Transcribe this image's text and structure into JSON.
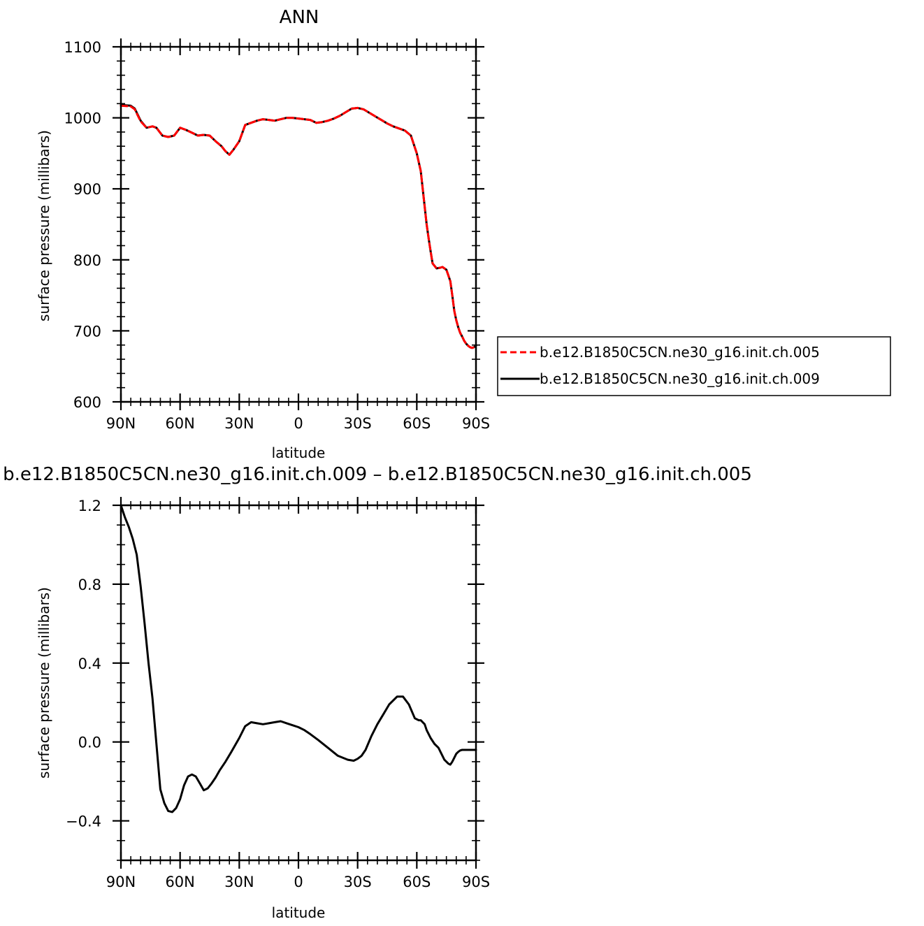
{
  "chart_data": [
    {
      "type": "line",
      "title": "ANN",
      "xlabel": "latitude",
      "ylabel": "surface pressure (millibars)",
      "xlim": [
        90,
        -90
      ],
      "ylim": [
        600,
        1100
      ],
      "xtick_values": [
        90,
        60,
        30,
        0,
        -30,
        -60,
        -90
      ],
      "xtick_labels": [
        "90N",
        "60N",
        "30N",
        "0",
        "30S",
        "60S",
        "90S"
      ],
      "ytick_values": [
        600,
        700,
        800,
        900,
        1000,
        1100
      ],
      "ytick_labels": [
        "600",
        "700",
        "800",
        "900",
        "1000",
        "1100"
      ],
      "grid": false,
      "legend_position": "right",
      "series": [
        {
          "name": "b.e12.B1850C5CN.ne30_g16.init.ch.005",
          "color": "#ff0000",
          "dash": "dashed",
          "x": [
            90,
            85,
            83,
            80,
            77,
            74,
            72,
            69,
            66,
            63,
            60,
            57,
            54,
            51,
            48,
            45,
            42,
            39,
            37,
            35,
            33,
            30,
            27,
            24,
            21,
            18,
            15,
            12,
            9,
            6,
            3,
            0,
            -3,
            -6,
            -9,
            -12,
            -15,
            -18,
            -21,
            -24,
            -27,
            -30,
            -33,
            -36,
            -39,
            -42,
            -45,
            -48,
            -51,
            -54,
            -57,
            -60,
            -62,
            -63,
            -64,
            -65,
            -66,
            -67,
            -68,
            -70,
            -72,
            -73,
            -75,
            -77,
            -78,
            -79,
            -80,
            -81,
            -82,
            -83,
            -84,
            -85,
            -86,
            -87,
            -88,
            -89,
            -90
          ],
          "y": [
            1017,
            1016,
            1012,
            995,
            986,
            988,
            986,
            975,
            973,
            975,
            986,
            983,
            979,
            975,
            976,
            975,
            967,
            960,
            953,
            948,
            955,
            967,
            990,
            993,
            996,
            998,
            997,
            996,
            998,
            1000,
            1000,
            999,
            998,
            997,
            993,
            994,
            996,
            999,
            1003,
            1008,
            1013,
            1014,
            1012,
            1007,
            1002,
            997,
            992,
            988,
            985,
            982,
            975,
            950,
            925,
            900,
            875,
            850,
            830,
            812,
            795,
            788,
            789,
            790,
            786,
            770,
            750,
            728,
            715,
            705,
            697,
            692,
            686,
            682,
            679,
            677,
            676,
            677,
            679
          ]
        },
        {
          "name": "b.e12.B1850C5CN.ne30_g16.init.ch.009",
          "color": "#000000",
          "dash": "solid",
          "x": [
            90,
            85,
            83,
            80,
            77,
            74,
            72,
            69,
            66,
            63,
            60,
            57,
            54,
            51,
            48,
            45,
            42,
            39,
            37,
            35,
            33,
            30,
            27,
            24,
            21,
            18,
            15,
            12,
            9,
            6,
            3,
            0,
            -3,
            -6,
            -9,
            -12,
            -15,
            -18,
            -21,
            -24,
            -27,
            -30,
            -33,
            -36,
            -39,
            -42,
            -45,
            -48,
            -51,
            -54,
            -57,
            -60,
            -62,
            -63,
            -64,
            -65,
            -66,
            -67,
            -68,
            -70,
            -72,
            -73,
            -75,
            -77,
            -78,
            -79,
            -80,
            -81,
            -82,
            -83,
            -84,
            -85,
            -86,
            -87,
            -88,
            -89,
            -90
          ],
          "y": [
            1018,
            1017,
            1013,
            996,
            986,
            988,
            986,
            975,
            973,
            975,
            986,
            983,
            979,
            975,
            976,
            975,
            967,
            960,
            953,
            948,
            955,
            967,
            990,
            993,
            996,
            998,
            997,
            996,
            998,
            1000,
            1000,
            999,
            998,
            997,
            993,
            994,
            996,
            999,
            1003,
            1008,
            1013,
            1014,
            1012,
            1007,
            1002,
            997,
            992,
            988,
            985,
            982,
            975,
            950,
            925,
            900,
            875,
            850,
            830,
            812,
            795,
            788,
            789,
            790,
            786,
            770,
            750,
            728,
            715,
            705,
            697,
            692,
            686,
            682,
            679,
            677,
            676,
            677,
            679
          ]
        }
      ]
    },
    {
      "type": "line",
      "title": "b.e12.B1850C5CN.ne30_g16.init.ch.009 – b.e12.B1850C5CN.ne30_g16.init.ch.005",
      "xlabel": "latitude",
      "ylabel": "surface pressure (millibars)",
      "xlim": [
        90,
        -90
      ],
      "ylim": [
        -0.6,
        1.2
      ],
      "xtick_values": [
        90,
        60,
        30,
        0,
        -30,
        -60,
        -90
      ],
      "xtick_labels": [
        "90N",
        "60N",
        "30N",
        "0",
        "30S",
        "60S",
        "90S"
      ],
      "ytick_values": [
        -0.4,
        0.0,
        0.4,
        0.8,
        1.2
      ],
      "ytick_labels": [
        "−0.4",
        "0.0",
        "0.4",
        "0.8",
        "1.2"
      ],
      "grid": false,
      "series": [
        {
          "color": "#000000",
          "dash": "solid",
          "x": [
            90,
            88,
            86,
            84,
            82,
            80,
            78,
            76,
            74,
            72,
            70,
            68,
            66,
            64,
            62,
            60,
            58,
            56,
            54,
            52,
            50,
            48,
            46,
            44,
            42,
            40,
            37,
            34,
            30,
            27,
            24,
            21,
            18,
            15,
            12,
            9,
            6,
            3,
            0,
            -3,
            -6,
            -10,
            -15,
            -20,
            -25,
            -28,
            -30,
            -32,
            -34,
            -37,
            -40,
            -43,
            -46,
            -50,
            -53,
            -56,
            -59,
            -61,
            -62,
            -64,
            -65,
            -66,
            -67,
            -69,
            -71,
            -72,
            -73,
            -74,
            -76,
            -77,
            -78,
            -79,
            -80,
            -81,
            -82,
            -83,
            -84,
            -85,
            -86,
            -87,
            -88,
            -90
          ],
          "y": [
            1.2,
            1.14,
            1.09,
            1.03,
            0.95,
            0.79,
            0.6,
            0.4,
            0.22,
            -0.01,
            -0.24,
            -0.31,
            -0.35,
            -0.355,
            -0.335,
            -0.29,
            -0.22,
            -0.175,
            -0.165,
            -0.175,
            -0.21,
            -0.245,
            -0.235,
            -0.21,
            -0.18,
            -0.145,
            -0.1,
            -0.05,
            0.02,
            0.08,
            0.1,
            0.095,
            0.09,
            0.095,
            0.1,
            0.105,
            0.095,
            0.085,
            0.075,
            0.06,
            0.04,
            0.01,
            -0.03,
            -0.07,
            -0.09,
            -0.095,
            -0.085,
            -0.07,
            -0.04,
            0.03,
            0.09,
            0.14,
            0.19,
            0.23,
            0.23,
            0.19,
            0.12,
            0.11,
            0.11,
            0.09,
            0.06,
            0.04,
            0.02,
            -0.01,
            -0.03,
            -0.05,
            -0.07,
            -0.09,
            -0.11,
            -0.115,
            -0.1,
            -0.08,
            -0.06,
            -0.05,
            -0.043,
            -0.04,
            -0.04,
            -0.04,
            -0.04,
            -0.04,
            -0.04,
            -0.04
          ]
        }
      ]
    }
  ]
}
